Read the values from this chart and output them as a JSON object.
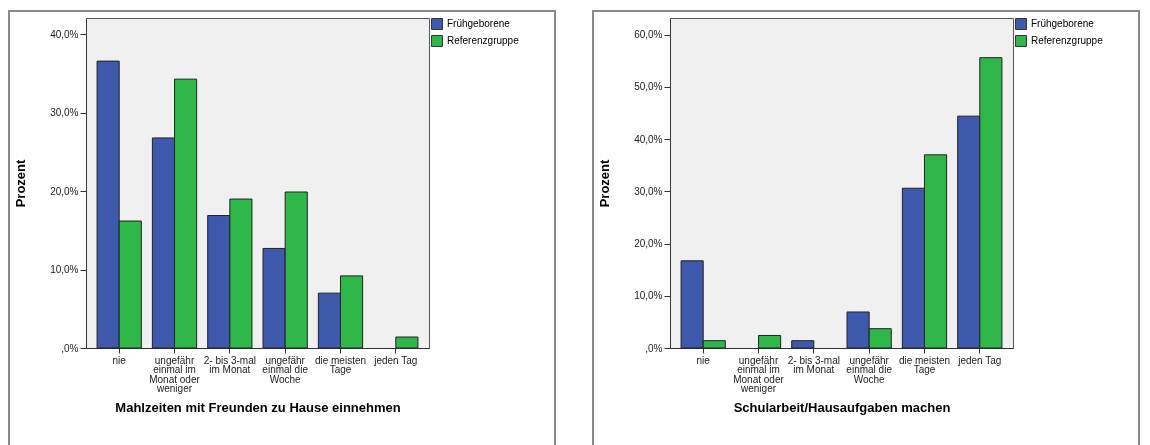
{
  "chart_data": [
    {
      "type": "bar",
      "xlabel": "Mahlzeiten mit  Freunden zu Hause einnehmen",
      "ylabel": "Prozent",
      "categories": [
        "nie",
        "ungefähr\neinmal im\nMonat oder\nweniger",
        "2- bis 3-mal\nim Monat",
        "ungefähr\neinmal die\nWoche",
        "die meisten\nTage",
        "jeden Tag"
      ],
      "series": [
        {
          "name": "Frühgeborene",
          "color": "#3e58ac",
          "values": [
            36.6,
            26.8,
            16.9,
            12.7,
            7.0,
            null
          ]
        },
        {
          "name": "Referenzgruppe",
          "color": "#2fb74a",
          "values": [
            16.2,
            34.3,
            19.0,
            19.9,
            9.2,
            1.4
          ]
        }
      ],
      "ylim": [
        0,
        42.1
      ],
      "yticks": [
        {
          "value": 0,
          "label": ",0%"
        },
        {
          "value": 10,
          "label": "10,0%"
        },
        {
          "value": 20,
          "label": "20,0%"
        },
        {
          "value": 30,
          "label": "30,0%"
        },
        {
          "value": 40,
          "label": "40,0%"
        }
      ],
      "grid": false,
      "legend": "top right"
    },
    {
      "type": "bar",
      "xlabel": "Schularbeit/Hausaufgaben machen",
      "ylabel": "Prozent",
      "categories": [
        "nie",
        "ungefähr\neinmal im\nMonat oder\nweniger",
        "2- bis 3-mal\nim Monat",
        "ungefähr\neinmal die\nWoche",
        "die meisten\nTage",
        "jeden Tag"
      ],
      "series": [
        {
          "name": "Frühgeborene",
          "color": "#3e58ac",
          "values": [
            16.7,
            null,
            1.4,
            6.9,
            30.6,
            44.4
          ]
        },
        {
          "name": "Referenzgruppe",
          "color": "#2fb74a",
          "values": [
            1.4,
            2.4,
            null,
            3.7,
            37.0,
            55.6
          ]
        }
      ],
      "ylim": [
        0,
        63.2
      ],
      "yticks": [
        {
          "value": 0,
          "label": ",0%"
        },
        {
          "value": 10,
          "label": "10,0%"
        },
        {
          "value": 20,
          "label": "20,0%"
        },
        {
          "value": 30,
          "label": "30,0%"
        },
        {
          "value": 40,
          "label": "40,0%"
        },
        {
          "value": 50,
          "label": "50,0%"
        },
        {
          "value": 60,
          "label": "60,0%"
        }
      ],
      "grid": false,
      "legend": "top right"
    }
  ]
}
